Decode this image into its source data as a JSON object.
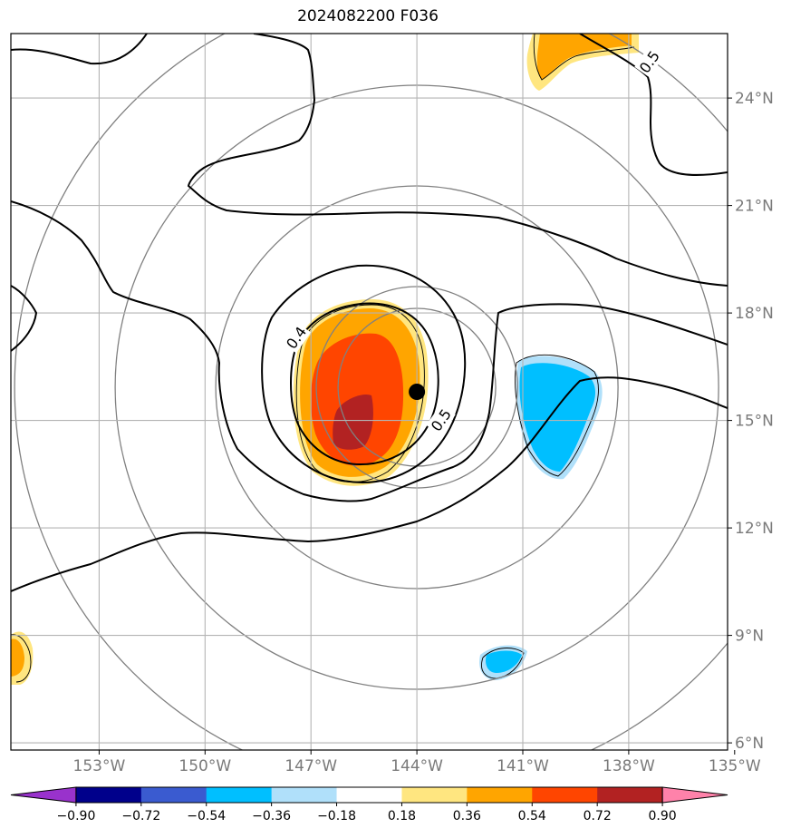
{
  "title": "2024082200 F036",
  "map": {
    "lon_range": [
      -155.5,
      -135.2
    ],
    "lat_range": [
      5.8,
      25.8
    ],
    "lon_ticks": [
      {
        "value": -153,
        "label": "153°W"
      },
      {
        "value": -150,
        "label": "150°W"
      },
      {
        "value": -147,
        "label": "147°W"
      },
      {
        "value": -144,
        "label": "144°W"
      },
      {
        "value": -141,
        "label": "141°W"
      },
      {
        "value": -138,
        "label": "138°W"
      },
      {
        "value": -135,
        "label": "135°W"
      }
    ],
    "lat_ticks": [
      {
        "value": 6,
        "label": "6°N"
      },
      {
        "value": 9,
        "label": "9°N"
      },
      {
        "value": 12,
        "label": "12°N"
      },
      {
        "value": 15,
        "label": "15°N"
      },
      {
        "value": 18,
        "label": "18°N"
      },
      {
        "value": 21,
        "label": "21°N"
      },
      {
        "value": 24,
        "label": "24°N"
      }
    ],
    "grid": true,
    "storm_center": {
      "lon": -144.0,
      "lat": 15.8
    },
    "range_rings": 5,
    "contour_labels": [
      {
        "text": "0.4",
        "lon": -147.4,
        "lat": 17.3
      },
      {
        "text": "0.5",
        "lon": -143.3,
        "lat": 15.0
      },
      {
        "text": "0.5",
        "lon": -137.4,
        "lat": 25.0
      }
    ]
  },
  "colorbar": {
    "colors": [
      "#9932cc",
      "#00008b",
      "#3a5bd0",
      "#00bfff",
      "#b0e0fa",
      "#ffffff",
      "#ffe680",
      "#ffa500",
      "#ff4500",
      "#b22222",
      "#ff82aa"
    ],
    "tick_labels": [
      "−0.90",
      "−0.72",
      "−0.54",
      "−0.36",
      "−0.18",
      "0.18",
      "0.36",
      "0.54",
      "0.72",
      "0.90"
    ],
    "extend": "both"
  }
}
